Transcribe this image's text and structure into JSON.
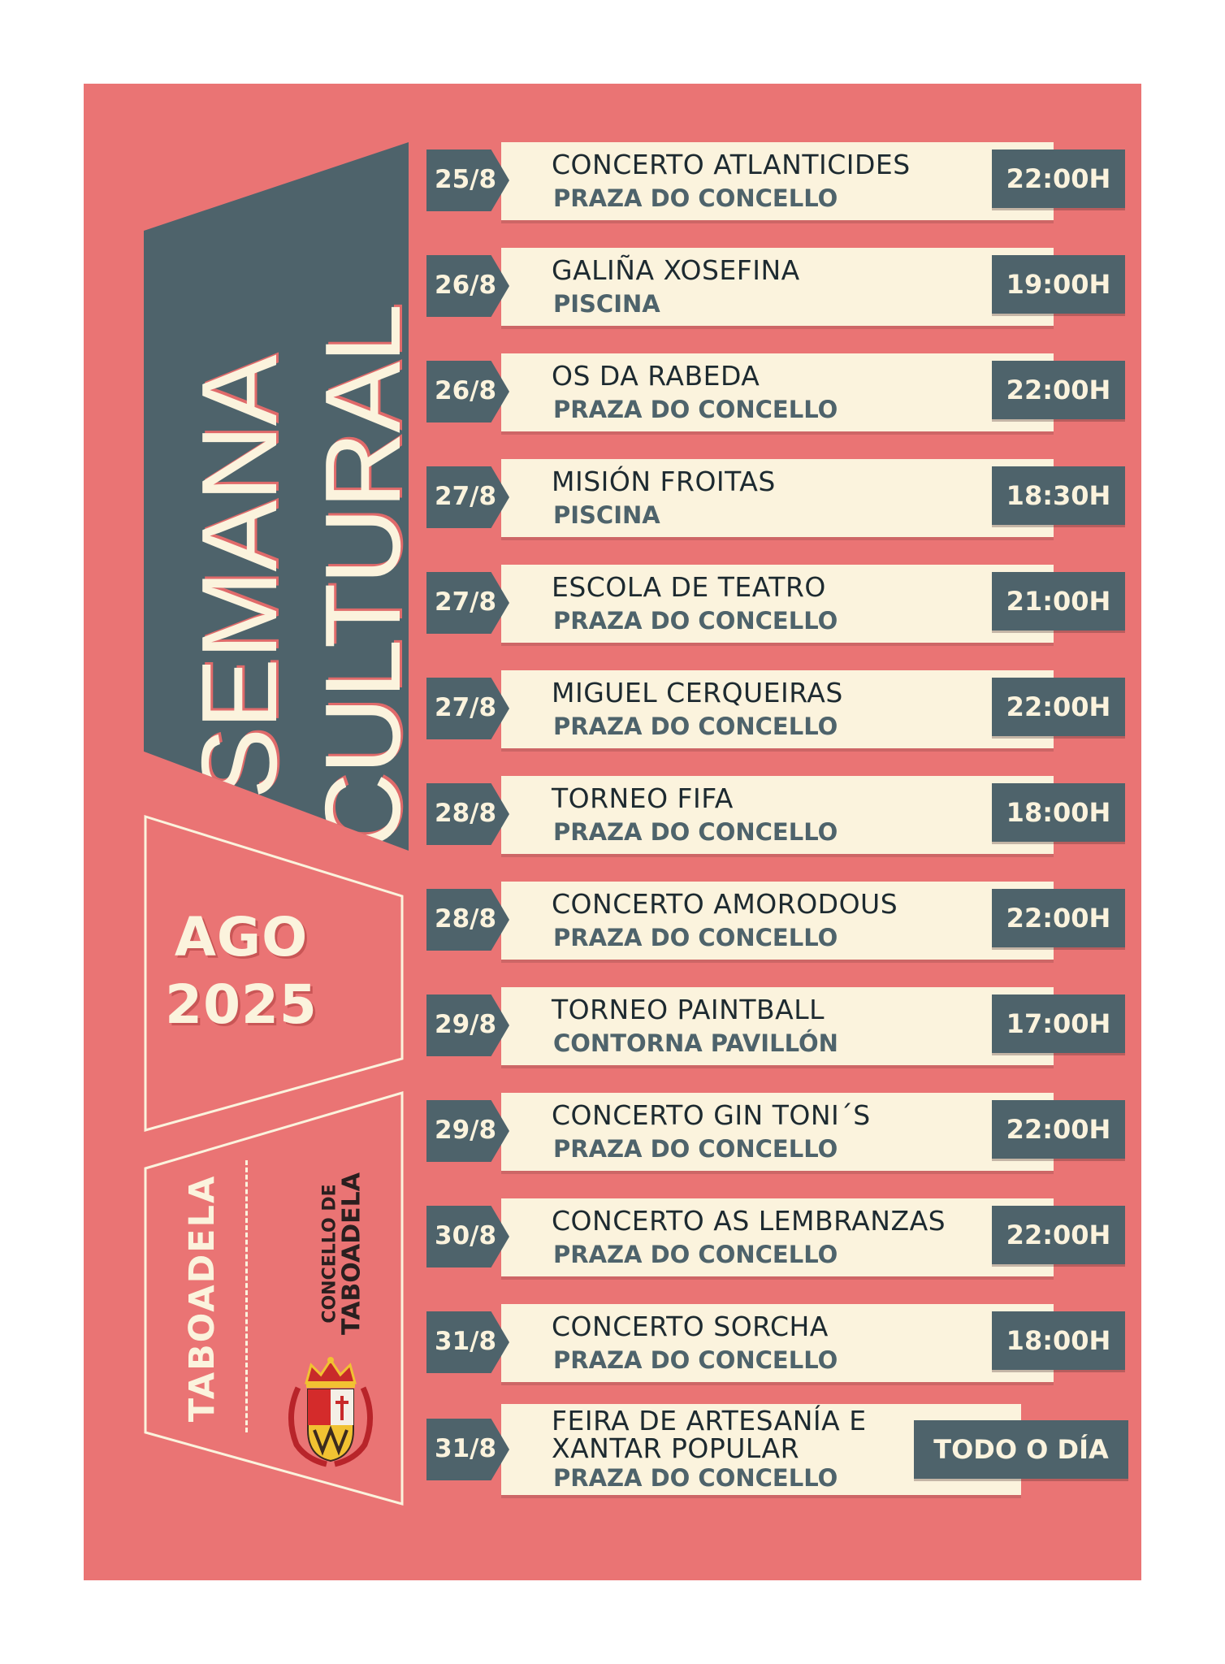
{
  "title": {
    "line1": "SEMANA",
    "line2": "CULTURAL"
  },
  "date": {
    "month": "AGO",
    "year": "2025"
  },
  "town": {
    "name": "TABOADELA",
    "council_line1": "CONCELLO DE",
    "council_line2": "TABOADELA"
  },
  "colors": {
    "background": "#ea7474",
    "dark": "#4e636b",
    "cream": "#fbf3dd"
  },
  "events": [
    {
      "date": "25/8",
      "title": "CONCERTO ATLANTICIDES",
      "venue": "PRAZA DO CONCELLO",
      "time": "22:00H"
    },
    {
      "date": "26/8",
      "title": "GALIÑA XOSEFINA",
      "venue": "PISCINA",
      "time": "19:00H"
    },
    {
      "date": "26/8",
      "title": "OS DA RABEDA",
      "venue": "PRAZA DO CONCELLO",
      "time": "22:00H"
    },
    {
      "date": "27/8",
      "title": "MISIÓN FROITAS",
      "venue": "PISCINA",
      "time": "18:30H"
    },
    {
      "date": "27/8",
      "title": "ESCOLA DE TEATRO",
      "venue": "PRAZA DO CONCELLO",
      "time": "21:00H"
    },
    {
      "date": "27/8",
      "title": "MIGUEL CERQUEIRAS",
      "venue": "PRAZA DO CONCELLO",
      "time": "22:00H"
    },
    {
      "date": "28/8",
      "title": "TORNEO FIFA",
      "venue": "PRAZA DO CONCELLO",
      "time": "18:00H"
    },
    {
      "date": "28/8",
      "title": "CONCERTO AMORODOUS",
      "venue": "PRAZA DO CONCELLO",
      "time": "22:00H"
    },
    {
      "date": "29/8",
      "title": "TORNEO PAINTBALL",
      "venue": "CONTORNA PAVILLÓN",
      "time": "17:00H"
    },
    {
      "date": "29/8",
      "title": "CONCERTO GIN TONI´S",
      "venue": "PRAZA DO CONCELLO",
      "time": "22:00H"
    },
    {
      "date": "30/8",
      "title": "CONCERTO AS LEMBRANZAS",
      "venue": "PRAZA DO CONCELLO",
      "time": "22:00H"
    },
    {
      "date": "31/8",
      "title": "CONCERTO SORCHA",
      "venue": "PRAZA DO CONCELLO",
      "time": "18:00H"
    },
    {
      "date": "31/8",
      "title": "FEIRA DE ARTESANÍA E XANTAR POPULAR",
      "venue": "PRAZA DO CONCELLO",
      "time": "TODO O DÍA"
    }
  ]
}
